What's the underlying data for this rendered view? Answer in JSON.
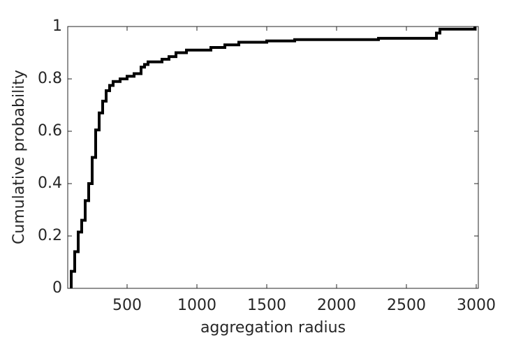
{
  "chart_data": {
    "type": "step",
    "x_label": "aggregation radius",
    "y_label": "Cumulative probability",
    "x": [
      100,
      100,
      125,
      150,
      175,
      200,
      225,
      250,
      275,
      300,
      325,
      350,
      375,
      400,
      450,
      500,
      550,
      600,
      625,
      650,
      750,
      800,
      850,
      925,
      1100,
      1200,
      1300,
      1500,
      1700,
      2300,
      2715,
      2740,
      2990
    ],
    "y": [
      0,
      0.065,
      0.14,
      0.215,
      0.26,
      0.335,
      0.4,
      0.5,
      0.605,
      0.67,
      0.715,
      0.755,
      0.775,
      0.79,
      0.8,
      0.81,
      0.82,
      0.845,
      0.855,
      0.865,
      0.875,
      0.885,
      0.9,
      0.91,
      0.92,
      0.93,
      0.94,
      0.945,
      0.95,
      0.955,
      0.975,
      0.99,
      1
    ],
    "color": "#000000",
    "xlim": [
      75,
      3015
    ],
    "xticks": [
      500,
      1000,
      1500,
      2000,
      2500,
      3000
    ],
    "ylim": [
      0,
      1
    ],
    "yticks": [
      0,
      0.2,
      0.4,
      0.6,
      0.8,
      1
    ]
  }
}
